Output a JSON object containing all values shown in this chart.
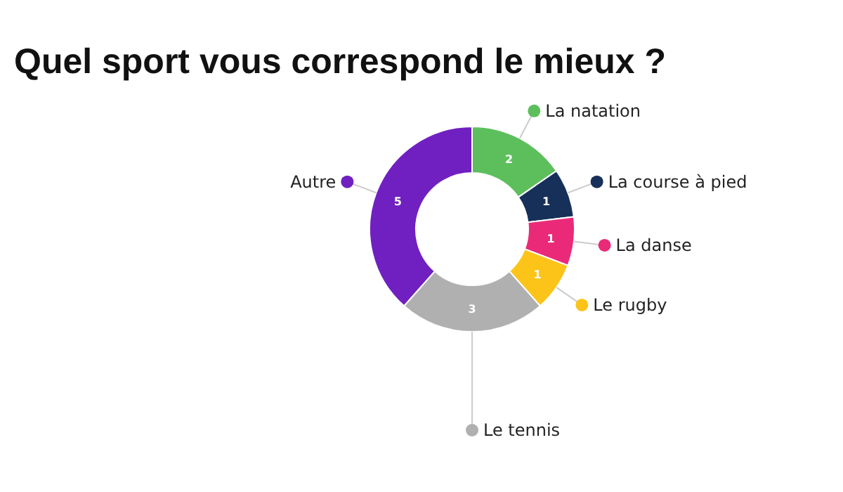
{
  "chart_data": {
    "type": "donut",
    "title": "Quel sport vous correspond le mieux ?",
    "categories": [
      "La natation",
      "La course à pied",
      "La danse",
      "Le rugby",
      "Le tennis",
      "Autre"
    ],
    "values": [
      2,
      1,
      1,
      1,
      3,
      5
    ],
    "colors": [
      "#5cbf5c",
      "#17305a",
      "#ea2a78",
      "#fcc419",
      "#b0b0b0",
      "#7020c0"
    ],
    "data_labels": true,
    "legend": "right"
  }
}
